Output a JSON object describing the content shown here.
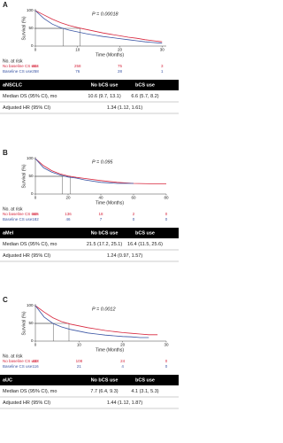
{
  "chart_data": [
    {
      "type": "line",
      "panel_label": "A",
      "annotation": "P = 0.00018",
      "ylabel": "Survival (%)",
      "xlabel": "Time (Months)",
      "at_risk_title": "No. at risk",
      "x": [
        0,
        2,
        4,
        6,
        8,
        10,
        12,
        14,
        16,
        18,
        20,
        22,
        24,
        26,
        28,
        30
      ],
      "series": [
        {
          "name": "No baseline CS use",
          "color": "#d7263d",
          "values": [
            100,
            88,
            76,
            66,
            58,
            52,
            47,
            42,
            37,
            33,
            29,
            25,
            22,
            18,
            15,
            12
          ],
          "at_risk": [
            604,
            258,
            75,
            3
          ]
        },
        {
          "name": "Baseline CS use",
          "color": "#3a55a4",
          "values": [
            100,
            78,
            62,
            52,
            45,
            40,
            35,
            31,
            27,
            24,
            21,
            18,
            15,
            12,
            10,
            8
          ],
          "at_risk": [
            258,
            76,
            28,
            1
          ]
        }
      ],
      "reference_x": [
        10.6,
        6.6
      ],
      "xlim": [
        0,
        31
      ],
      "xticks": [
        0,
        10,
        20,
        30
      ],
      "ylim": [
        0,
        100
      ],
      "yticks": [
        0,
        50,
        100
      ]
    },
    {
      "type": "line",
      "panel_label": "B",
      "annotation": "P = 0.095",
      "ylabel": "Survival (%)",
      "xlabel": "Time (Months)",
      "at_risk_title": "No. at risk",
      "x": [
        0,
        5,
        10,
        15,
        20,
        25,
        30,
        40,
        50,
        60,
        70,
        80
      ],
      "series": [
        {
          "name": "No baseline CS use",
          "color": "#d7263d",
          "values": [
            100,
            80,
            66,
            57,
            51,
            47,
            44,
            38,
            33,
            30,
            29,
            29
          ],
          "at_risk": [
            505,
            136,
            18,
            2,
            0
          ]
        },
        {
          "name": "Baseline CS use",
          "color": "#3a55a4",
          "values": [
            100,
            74,
            62,
            54,
            48,
            45,
            40,
            33,
            30,
            30,
            null,
            null
          ],
          "at_risk": [
            182,
            46,
            7,
            0,
            0
          ]
        }
      ],
      "reference_x": [
        21.5,
        16.4
      ],
      "xlim": [
        0,
        80
      ],
      "xticks": [
        0,
        20,
        40,
        60,
        80
      ],
      "ylim": [
        0,
        100
      ],
      "yticks": [
        0,
        50,
        100
      ]
    },
    {
      "type": "line",
      "panel_label": "C",
      "annotation": "P = 0.0012",
      "ylabel": "Survival (%)",
      "xlabel": "Time (Months)",
      "at_risk_title": "No. at risk",
      "x": [
        0,
        2,
        4,
        6,
        8,
        10,
        12,
        14,
        16,
        18,
        20,
        22,
        24,
        26,
        28
      ],
      "series": [
        {
          "name": "No baseline CS use",
          "color": "#d7263d",
          "values": [
            100,
            82,
            66,
            55,
            48,
            43,
            38,
            34,
            30,
            27,
            24,
            22,
            20,
            18,
            18
          ],
          "at_risk": [
            433,
            108,
            24,
            0
          ]
        },
        {
          "name": "Baseline CS use",
          "color": "#3a55a4",
          "values": [
            100,
            68,
            50,
            40,
            33,
            28,
            23,
            20,
            17,
            15,
            13,
            12,
            10,
            10,
            null
          ],
          "at_risk": [
            116,
            21,
            4,
            0
          ]
        }
      ],
      "reference_x": [
        7.7,
        4.1
      ],
      "xlim": [
        0,
        30
      ],
      "xticks": [
        0,
        10,
        20,
        30
      ],
      "ylim": [
        0,
        100
      ],
      "yticks": [
        0,
        50,
        100
      ]
    }
  ],
  "tables": [
    {
      "header": [
        "aNSCLC",
        "No bCS use",
        "bCS use"
      ],
      "rows": [
        [
          "Median OS (95% CI), mo",
          "10.6 (9.7, 13.1)",
          "6.6 (5.7, 8.2)"
        ],
        [
          "Adjusted HR (95% CI)",
          "1.34 (1.12, 1.61)"
        ]
      ]
    },
    {
      "header": [
        "aMel",
        "No bCS use",
        "bCS use"
      ],
      "rows": [
        [
          "Median OS (95% CI), mo",
          "21.5 (17.2, 25.1)",
          "16.4 (11.5, 25.6)"
        ],
        [
          "Adjusted HR (95% CI)",
          "1.24 (0.97, 1.57)"
        ]
      ]
    },
    {
      "header": [
        "aUC",
        "No bCS use",
        "bCS use"
      ],
      "rows": [
        [
          "Median OS (95% CI), mo",
          "7.7 (6.4, 9.3)",
          "4.1 (3.1, 5.3)"
        ],
        [
          "Adjusted HR (95% CI)",
          "1.44 (1.12, 1.87)"
        ]
      ]
    }
  ]
}
